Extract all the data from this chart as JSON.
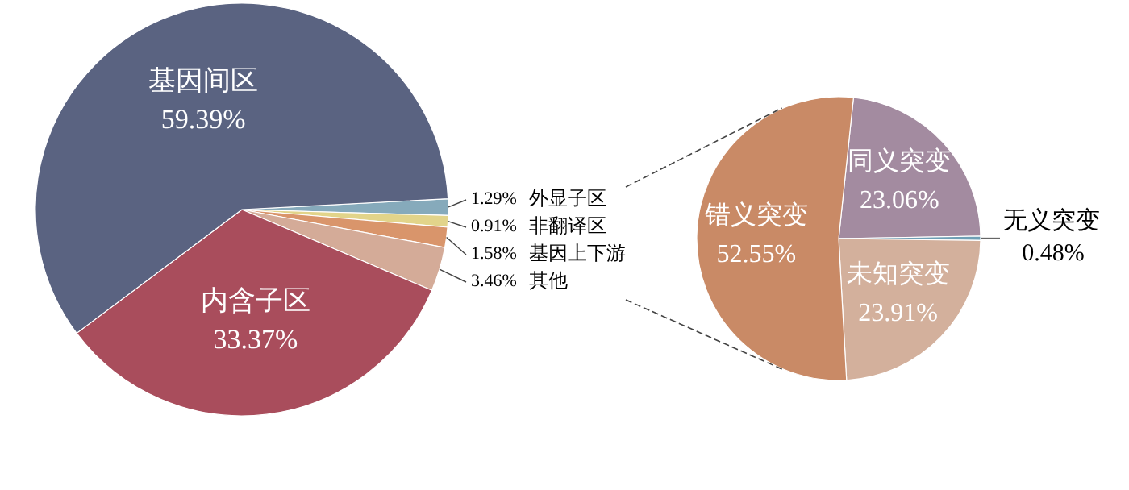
{
  "chart_data": [
    {
      "type": "pie",
      "categories": [
        "外显子区",
        "非翻译区",
        "基因上下游",
        "其他",
        "内含子区",
        "基因间区"
      ],
      "values": [
        1.29,
        0.91,
        1.58,
        3.46,
        33.37,
        59.39
      ],
      "value_labels": [
        "1.29%",
        "0.91%",
        "1.58%",
        "3.46%",
        "33.37%",
        "59.39%"
      ],
      "colors": [
        "#86aabb",
        "#e2d48a",
        "#d9956b",
        "#d4ab98",
        "#a94d5c",
        "#5a6381"
      ]
    },
    {
      "type": "pie",
      "categories": [
        "同义突变",
        "无义突变",
        "未知突变",
        "错义突变"
      ],
      "values": [
        23.06,
        0.48,
        23.91,
        52.55
      ],
      "value_labels": [
        "23.06%",
        "0.48%",
        "23.91%",
        "52.55%"
      ],
      "colors": [
        "#a38ba0",
        "#6e9fb5",
        "#d3b09c",
        "#c98a66"
      ]
    }
  ]
}
